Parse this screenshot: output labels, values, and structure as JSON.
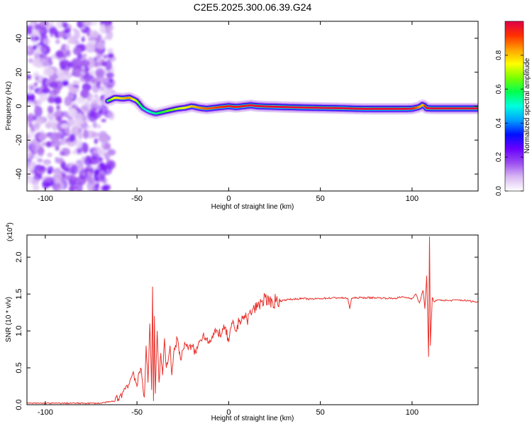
{
  "figure": {
    "title": "C2E5.2025.300.06.39.G24"
  },
  "colors": {
    "snr_line": "#e8302a",
    "axis": "#000000",
    "colormap": [
      "#ffffff",
      "#d8b8f2",
      "#9a4cf0",
      "#6a00ff",
      "#0010ff",
      "#00a0ff",
      "#00ffe0",
      "#00ff50",
      "#7aff00",
      "#ffff00",
      "#ffa000",
      "#ff3000",
      "#e0004a"
    ]
  },
  "chart_data": [
    {
      "type": "heatmap",
      "id": "spectrogram",
      "title": "",
      "xlabel": "Height of straight line (km)",
      "ylabel": "Frequency (Hz)",
      "xlim": [
        -110,
        136
      ],
      "ylim": [
        -50,
        50
      ],
      "xticks": [
        -100,
        -50,
        0,
        50,
        100
      ],
      "yticks": [
        -40,
        -20,
        0,
        20,
        40
      ],
      "grid": false,
      "noise_region_x": [
        -110,
        -65
      ],
      "ridge": {
        "x": [
          -66,
          -62,
          -58,
          -54,
          -50,
          -47,
          -44,
          -40,
          -36,
          -32,
          -28,
          -24,
          -20,
          -16,
          -12,
          -8,
          -4,
          0,
          4,
          8,
          12,
          16,
          20,
          25,
          30,
          40,
          50,
          60,
          70,
          80,
          90,
          100,
          104,
          106,
          108,
          112,
          120,
          136
        ],
        "frequency": [
          3,
          5,
          4.5,
          5,
          3,
          -1,
          -3,
          -4.5,
          -3.5,
          -2.5,
          -1.5,
          -1,
          0,
          -1,
          -1.5,
          -1,
          -0.5,
          0,
          -0.5,
          0,
          0.5,
          0,
          -0.2,
          -0.3,
          -0.5,
          -0.8,
          -1,
          -1.2,
          -1.5,
          -1.6,
          -1.6,
          -1.5,
          -0.5,
          1,
          -1.2,
          -1.4,
          -1.4,
          -1.4
        ],
        "amplitude": [
          0.6,
          0.75,
          0.8,
          0.85,
          0.7,
          0.55,
          0.5,
          0.55,
          0.6,
          0.65,
          0.7,
          0.75,
          0.8,
          0.85,
          0.88,
          0.9,
          0.92,
          0.95,
          0.95,
          0.96,
          0.97,
          0.97,
          0.97,
          0.97,
          0.98,
          0.98,
          0.98,
          0.98,
          0.98,
          0.98,
          0.98,
          0.98,
          0.85,
          0.8,
          0.98,
          0.98,
          0.98,
          0.98
        ]
      },
      "colorbar": {
        "label": "Normalized spectral amplitude",
        "range": [
          0,
          1
        ],
        "ticks": [
          "0.0",
          "0.2",
          "0.4",
          "0.6",
          "0.8"
        ]
      }
    },
    {
      "type": "line",
      "id": "snr",
      "title": "",
      "xlabel": "Height of straight line (km)",
      "ylabel": "SNR (10 * v/v)",
      "scale_label": "(x10",
      "scale_exponent": "4",
      "scale_suffix": ")",
      "xlim": [
        -110,
        136
      ],
      "ylim": [
        0,
        2.3
      ],
      "xticks": [
        -100,
        -50,
        0,
        50,
        100
      ],
      "yticks": [
        "0.0",
        "0.5",
        "1.0",
        "1.5",
        "2.0"
      ],
      "grid": false,
      "series": [
        {
          "name": "",
          "x": [
            -110,
            -70,
            -62,
            -58,
            -56,
            -54,
            -52,
            -50,
            -48,
            -46,
            -45,
            -44,
            -43,
            -42,
            -41.5,
            -41,
            -40.5,
            -40,
            -39,
            -38,
            -37,
            -36,
            -35,
            -34,
            -33,
            -32,
            -31,
            -30,
            -28,
            -26,
            -24,
            -22,
            -20,
            -18,
            -16,
            -14,
            -12,
            -10,
            -8,
            -6,
            -4,
            -2,
            0,
            2,
            4,
            6,
            8,
            10,
            12,
            14,
            16,
            18,
            20,
            22,
            24,
            26,
            28,
            30,
            35,
            40,
            45,
            50,
            60,
            65,
            66,
            67,
            70,
            80,
            90,
            95,
            100,
            102,
            104,
            106,
            107,
            108,
            109,
            109.5,
            110,
            111,
            112,
            115,
            120,
            125,
            130,
            136
          ],
          "y": [
            0.02,
            0.02,
            0.05,
            0.15,
            0.25,
            0.3,
            0.45,
            0.25,
            0.5,
            0.1,
            0.8,
            0.3,
            1.1,
            0.2,
            1.6,
            0.05,
            1.2,
            0.15,
            1.0,
            0.3,
            0.7,
            0.4,
            0.9,
            0.5,
            0.6,
            0.8,
            0.4,
            0.7,
            0.9,
            0.6,
            0.85,
            0.75,
            0.8,
            0.7,
            0.85,
            0.95,
            0.9,
            0.85,
            0.95,
            1.0,
            0.95,
            1.05,
            0.85,
            1.1,
            1.0,
            1.15,
            1.2,
            1.15,
            1.25,
            1.3,
            1.35,
            1.4,
            1.45,
            1.35,
            1.4,
            1.42,
            1.4,
            1.42,
            1.43,
            1.44,
            1.43,
            1.44,
            1.45,
            1.44,
            1.3,
            1.44,
            1.45,
            1.45,
            1.44,
            1.46,
            1.44,
            1.5,
            1.38,
            1.55,
            1.3,
            1.75,
            0.65,
            2.28,
            0.8,
            1.45,
            1.4,
            1.42,
            1.41,
            1.42,
            1.41,
            1.39
          ]
        }
      ]
    }
  ]
}
